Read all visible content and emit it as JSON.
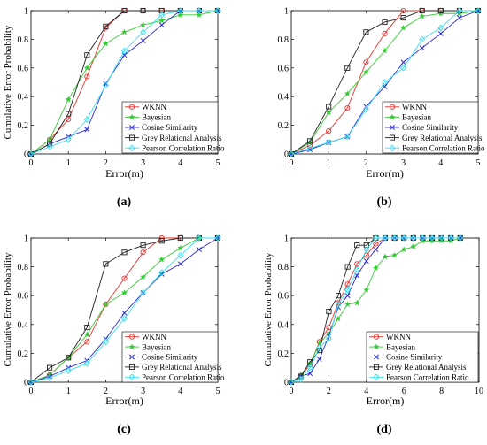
{
  "colors": {
    "wknn": "#e8302a",
    "bayesian": "#33cc33",
    "cosine": "#2a2ad8",
    "grey": "#222222",
    "pearson": "#33e0f0"
  },
  "chart_data": [
    {
      "type": "line",
      "caption": "(a)",
      "xlabel": "Error(m)",
      "ylabel": "Cumulative Error Probability",
      "xlim": [
        0,
        5
      ],
      "ylim": [
        0,
        1
      ],
      "xticks": [
        "0",
        "1",
        "2",
        "3",
        "4",
        "5"
      ],
      "yticks": [
        "0",
        "0.2",
        "0.4",
        "0.6",
        "0.8",
        "1"
      ],
      "legend_position": "bottom-right",
      "grid": false,
      "series": [
        {
          "name": "WKNN",
          "marker": "circle",
          "color": "#e8302a",
          "x": [
            0,
            0.5,
            1,
            1.5,
            2,
            2.5,
            3,
            3.5,
            4,
            4.5,
            5
          ],
          "y": [
            0,
            0.1,
            0.24,
            0.54,
            0.88,
            1,
            1,
            1,
            1,
            1,
            1
          ]
        },
        {
          "name": "Bayesian",
          "marker": "star",
          "color": "#33cc33",
          "x": [
            0,
            0.5,
            1,
            1.5,
            2,
            2.5,
            3,
            3.5,
            4,
            4.5,
            5
          ],
          "y": [
            0,
            0.1,
            0.38,
            0.6,
            0.77,
            0.85,
            0.9,
            0.93,
            0.97,
            0.97,
            1
          ]
        },
        {
          "name": "Cosine Similarity",
          "marker": "x",
          "color": "#2a2ad8",
          "x": [
            0,
            0.5,
            1,
            1.5,
            2,
            2.5,
            3,
            3.5,
            4,
            4.5,
            5
          ],
          "y": [
            0,
            0.07,
            0.12,
            0.17,
            0.49,
            0.69,
            0.79,
            0.9,
            1,
            1,
            1
          ]
        },
        {
          "name": "Grey Relational Analysis",
          "marker": "square",
          "color": "#222222",
          "x": [
            0,
            0.5,
            1,
            1.5,
            2,
            2.5,
            3,
            3.5,
            4,
            4.5,
            5
          ],
          "y": [
            0,
            0.07,
            0.28,
            0.69,
            0.89,
            1,
            1,
            1,
            1,
            1,
            1
          ]
        },
        {
          "name": "Pearson Correlation Ratio",
          "marker": "diamond",
          "color": "#33e0f0",
          "x": [
            0,
            0.5,
            1,
            1.5,
            2,
            2.5,
            3,
            3.5,
            4,
            4.5,
            5
          ],
          "y": [
            0,
            0.05,
            0.1,
            0.24,
            0.48,
            0.72,
            0.85,
            0.97,
            1,
            1,
            1
          ]
        }
      ]
    },
    {
      "type": "line",
      "caption": "(b)",
      "xlabel": "Error(m)",
      "ylabel": "",
      "xlim": [
        0,
        5
      ],
      "ylim": [
        0,
        1
      ],
      "xticks": [
        "0",
        "1",
        "2",
        "3",
        "4",
        "5"
      ],
      "yticks": [
        "0",
        "0.2",
        "0.4",
        "0.6",
        "0.8",
        "1"
      ],
      "legend_position": "bottom-right",
      "grid": false,
      "series": [
        {
          "name": "WKNN",
          "marker": "circle",
          "color": "#e8302a",
          "x": [
            0,
            0.5,
            1,
            1.5,
            2,
            2.5,
            3,
            3.5,
            4,
            4.5,
            5
          ],
          "y": [
            0,
            0.06,
            0.16,
            0.32,
            0.64,
            0.84,
            1,
            1,
            1,
            1,
            1
          ]
        },
        {
          "name": "Bayesian",
          "marker": "star",
          "color": "#33cc33",
          "x": [
            0,
            0.5,
            1,
            1.5,
            2,
            2.5,
            3,
            3.5,
            4,
            4.5,
            5
          ],
          "y": [
            0,
            0.08,
            0.29,
            0.42,
            0.57,
            0.72,
            0.88,
            0.96,
            0.98,
            0.98,
            1
          ]
        },
        {
          "name": "Cosine Similarity",
          "marker": "x",
          "color": "#2a2ad8",
          "x": [
            0,
            0.5,
            1,
            1.5,
            2,
            2.5,
            3,
            3.5,
            4,
            4.5,
            5
          ],
          "y": [
            0,
            0.03,
            0.08,
            0.12,
            0.33,
            0.47,
            0.64,
            0.74,
            0.84,
            0.95,
            1
          ]
        },
        {
          "name": "Grey Relational Analysis",
          "marker": "square",
          "color": "#222222",
          "x": [
            0,
            0.5,
            1,
            1.5,
            2,
            2.5,
            3,
            3.5,
            4,
            4.5,
            5
          ],
          "y": [
            0,
            0.09,
            0.33,
            0.6,
            0.85,
            0.92,
            0.95,
            1,
            1,
            1,
            1
          ]
        },
        {
          "name": "Pearson Correlation Ratio",
          "marker": "diamond",
          "color": "#33e0f0",
          "x": [
            0,
            0.5,
            1,
            1.5,
            2,
            2.5,
            3,
            3.5,
            4,
            4.5,
            5
          ],
          "y": [
            0,
            0.04,
            0.08,
            0.12,
            0.31,
            0.5,
            0.6,
            0.8,
            0.88,
            1,
            1
          ]
        }
      ]
    },
    {
      "type": "line",
      "caption": "(c)",
      "xlabel": "Error(m)",
      "ylabel": "Cumulative Error Probability",
      "xlim": [
        0,
        5
      ],
      "ylim": [
        0,
        1
      ],
      "xticks": [
        "0",
        "1",
        "2",
        "3",
        "4",
        "5"
      ],
      "yticks": [
        "0",
        "0.2",
        "0.4",
        "0.6",
        "0.8",
        "1"
      ],
      "legend_position": "bottom-right",
      "grid": false,
      "series": [
        {
          "name": "WKNN",
          "marker": "circle",
          "color": "#e8302a",
          "x": [
            0,
            0.5,
            1,
            1.5,
            2,
            2.5,
            3,
            3.5,
            4,
            4.5,
            5
          ],
          "y": [
            0,
            0.05,
            0.17,
            0.28,
            0.54,
            0.72,
            0.9,
            1,
            1,
            1,
            1
          ]
        },
        {
          "name": "Bayesian",
          "marker": "star",
          "color": "#33cc33",
          "x": [
            0,
            0.5,
            1,
            1.5,
            2,
            2.5,
            3,
            3.5,
            4,
            4.5,
            5
          ],
          "y": [
            0,
            0.05,
            0.17,
            0.33,
            0.54,
            0.62,
            0.73,
            0.85,
            0.93,
            1,
            1
          ]
        },
        {
          "name": "Cosine Similarity",
          "marker": "x",
          "color": "#2a2ad8",
          "x": [
            0,
            0.5,
            1,
            1.5,
            2,
            2.5,
            3,
            3.5,
            4,
            4.5,
            5
          ],
          "y": [
            0,
            0.04,
            0.1,
            0.15,
            0.3,
            0.48,
            0.62,
            0.75,
            0.82,
            0.92,
            1
          ]
        },
        {
          "name": "Grey Relational Analysis",
          "marker": "square",
          "color": "#222222",
          "x": [
            0,
            0.5,
            1,
            1.5,
            2,
            2.5,
            3,
            3.5,
            4,
            4.5,
            5
          ],
          "y": [
            0,
            0.1,
            0.17,
            0.38,
            0.82,
            0.9,
            0.95,
            0.98,
            1,
            1,
            1
          ]
        },
        {
          "name": "Pearson Correlation Ratio",
          "marker": "diamond",
          "color": "#33e0f0",
          "x": [
            0,
            0.5,
            1,
            1.5,
            2,
            2.5,
            3,
            3.5,
            4,
            4.5,
            5
          ],
          "y": [
            0,
            0.03,
            0.08,
            0.13,
            0.28,
            0.44,
            0.62,
            0.76,
            0.88,
            1,
            1
          ]
        }
      ]
    },
    {
      "type": "line",
      "caption": "(d)",
      "xlabel": "Error(m)",
      "ylabel": "Cumulative Error Probability",
      "xlim": [
        0,
        10
      ],
      "ylim": [
        0,
        1
      ],
      "xticks": [
        "0",
        "2",
        "4",
        "6",
        "8",
        "10"
      ],
      "yticks": [
        "0",
        "0.2",
        "0.4",
        "0.6",
        "0.8",
        "1"
      ],
      "legend_position": "bottom-right",
      "grid": false,
      "series": [
        {
          "name": "WKNN",
          "marker": "circle",
          "color": "#e8302a",
          "x": [
            0,
            0.5,
            1,
            1.5,
            2,
            2.5,
            3,
            3.5,
            4,
            4.5,
            5,
            5.5,
            6,
            6.5,
            7,
            7.5,
            8,
            8.5,
            9
          ],
          "y": [
            0,
            0.04,
            0.12,
            0.28,
            0.38,
            0.55,
            0.68,
            0.82,
            0.88,
            0.96,
            1,
            1,
            1,
            1,
            1,
            1,
            1,
            1,
            1
          ]
        },
        {
          "name": "Bayesian",
          "marker": "star",
          "color": "#33cc33",
          "x": [
            0,
            0.5,
            1,
            1.5,
            2,
            2.5,
            3,
            3.5,
            4,
            4.5,
            5,
            5.5,
            6,
            6.5,
            7,
            7.5,
            8,
            8.5,
            9
          ],
          "y": [
            0,
            0.05,
            0.13,
            0.27,
            0.34,
            0.44,
            0.54,
            0.55,
            0.64,
            0.79,
            0.87,
            0.88,
            0.92,
            0.94,
            0.98,
            0.98,
            0.98,
            0.98,
            1
          ]
        },
        {
          "name": "Cosine Similarity",
          "marker": "x",
          "color": "#2a2ad8",
          "x": [
            0,
            0.5,
            1,
            1.5,
            2,
            2.5,
            3,
            3.5,
            4,
            4.5,
            5,
            5.5,
            6,
            6.5,
            7,
            7.5,
            8,
            8.5,
            9
          ],
          "y": [
            0,
            0.04,
            0.06,
            0.16,
            0.32,
            0.52,
            0.6,
            0.74,
            0.84,
            0.92,
            1,
            1,
            1,
            1,
            1,
            1,
            1,
            1,
            1
          ]
        },
        {
          "name": "Grey Relational Analysis",
          "marker": "square",
          "color": "#222222",
          "x": [
            0,
            0.5,
            1,
            1.5,
            2,
            2.5,
            3,
            3.5,
            4,
            4.5,
            5,
            5.5,
            6,
            6.5,
            7,
            7.5,
            8,
            8.5,
            9
          ],
          "y": [
            0,
            0.04,
            0.14,
            0.22,
            0.49,
            0.6,
            0.8,
            0.95,
            0.95,
            1,
            1,
            1,
            1,
            1,
            1,
            1,
            1,
            1,
            1
          ]
        },
        {
          "name": "Pearson Correlation Ratio",
          "marker": "diamond",
          "color": "#33e0f0",
          "x": [
            0,
            0.5,
            1,
            1.5,
            2,
            2.5,
            3,
            3.5,
            4,
            4.5,
            5,
            5.5,
            6,
            6.5,
            7,
            7.5,
            8,
            8.5,
            9
          ],
          "y": [
            0,
            0.02,
            0.1,
            0.24,
            0.3,
            0.54,
            0.64,
            0.78,
            0.92,
            1,
            1,
            1,
            1,
            1,
            1,
            1,
            1,
            1,
            1
          ]
        }
      ]
    }
  ]
}
